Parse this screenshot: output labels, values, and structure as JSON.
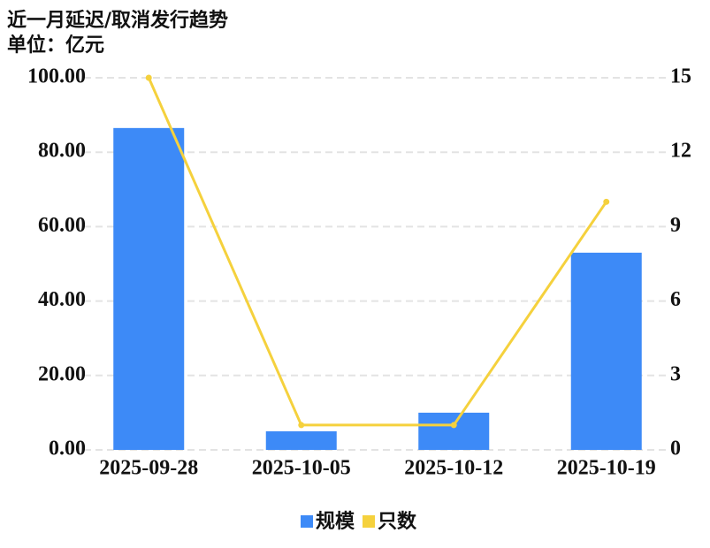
{
  "chart_data": {
    "type": "bar-line",
    "title": "近一月延迟/取消发行趋势",
    "subtitle": "单位：亿元",
    "categories": [
      "2025-09-28",
      "2025-10-05",
      "2025-10-12",
      "2025-10-19"
    ],
    "series": [
      {
        "name": "规模",
        "type": "bar",
        "color": "#3d8af7",
        "values": [
          86.5,
          5,
          10,
          53
        ]
      },
      {
        "name": "只数",
        "type": "line",
        "axis": "y2",
        "color": "#f5d13d",
        "values": [
          15,
          1,
          1,
          10
        ]
      }
    ],
    "ylim": [
      0,
      100
    ],
    "yticks": [
      {
        "value": 0,
        "label": "0.00"
      },
      {
        "value": 20,
        "label": "20.00"
      },
      {
        "value": 40,
        "label": "40.00"
      },
      {
        "value": 60,
        "label": "60.00"
      },
      {
        "value": 80,
        "label": "80.00"
      },
      {
        "value": 100,
        "label": "100.00"
      }
    ],
    "y2lim": [
      0,
      15
    ],
    "y2ticks": [
      0,
      3,
      6,
      9,
      12,
      15
    ],
    "grid": true,
    "legend": "bottom"
  }
}
